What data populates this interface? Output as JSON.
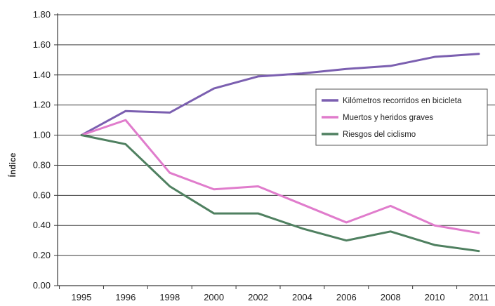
{
  "chart_data": {
    "type": "line",
    "title": "",
    "xlabel": "",
    "ylabel": "Índice",
    "categories": [
      "1995",
      "1996",
      "1998",
      "2000",
      "2002",
      "2004",
      "2006",
      "2008",
      "2010",
      "2011"
    ],
    "ylim": [
      0,
      1.8
    ],
    "y_ticks": [
      "0.00",
      "0.20",
      "0.40",
      "0.60",
      "0.80",
      "1.00",
      "1.20",
      "1.40",
      "1.60",
      "1.80"
    ],
    "grid": "horizontal",
    "legend_position": "right",
    "series": [
      {
        "name": "Kilómetros recorridos en bicicleta",
        "color": "#7b5fb0",
        "values": [
          1.0,
          1.16,
          1.15,
          1.31,
          1.39,
          1.41,
          1.44,
          1.46,
          1.52,
          1.54
        ]
      },
      {
        "name": "Muertos y heridos graves",
        "color": "#e07ccc",
        "values": [
          1.0,
          1.1,
          0.75,
          0.64,
          0.66,
          0.54,
          0.42,
          0.53,
          0.4,
          0.35
        ]
      },
      {
        "name": "Riesgos del ciclismo",
        "color": "#4f8060",
        "values": [
          1.0,
          0.94,
          0.66,
          0.48,
          0.48,
          0.38,
          0.3,
          0.36,
          0.27,
          0.23
        ]
      }
    ]
  }
}
